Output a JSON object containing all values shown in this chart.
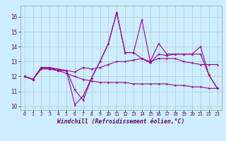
{
  "xlabel": "Windchill (Refroidissement éolien,°C)",
  "x": [
    0,
    1,
    2,
    3,
    4,
    5,
    6,
    7,
    8,
    9,
    10,
    11,
    12,
    13,
    14,
    15,
    16,
    17,
    18,
    19,
    20,
    21,
    22,
    23
  ],
  "line1": [
    12.0,
    11.8,
    12.6,
    12.6,
    12.5,
    12.4,
    10.1,
    10.7,
    11.9,
    13.0,
    14.2,
    16.3,
    13.6,
    13.6,
    15.8,
    13.0,
    14.2,
    13.5,
    13.5,
    13.5,
    13.5,
    14.0,
    12.1,
    11.2
  ],
  "line2": [
    12.0,
    11.8,
    12.6,
    12.5,
    12.4,
    12.4,
    11.1,
    10.4,
    11.9,
    13.0,
    14.2,
    16.3,
    13.6,
    13.6,
    13.2,
    12.9,
    13.5,
    13.4,
    13.5,
    13.5,
    13.5,
    13.5,
    12.1,
    11.2
  ],
  "line3": [
    12.0,
    11.8,
    12.6,
    12.6,
    12.4,
    12.4,
    12.3,
    12.6,
    12.5,
    12.6,
    12.8,
    13.0,
    13.0,
    13.1,
    13.2,
    13.0,
    13.2,
    13.2,
    13.2,
    13.0,
    12.9,
    12.8,
    12.8,
    12.8
  ],
  "line4": [
    12.0,
    11.8,
    12.5,
    12.5,
    12.4,
    12.2,
    12.0,
    11.8,
    11.7,
    11.6,
    11.6,
    11.6,
    11.6,
    11.5,
    11.5,
    11.5,
    11.5,
    11.5,
    11.4,
    11.4,
    11.3,
    11.3,
    11.2,
    11.2
  ],
  "line_color": "#990099",
  "bg_color": "#cceeff",
  "grid_color": "#aacccc",
  "ylim": [
    9.75,
    16.75
  ],
  "yticks": [
    10,
    11,
    12,
    13,
    14,
    15,
    16
  ],
  "xlim": [
    -0.5,
    23.5
  ]
}
